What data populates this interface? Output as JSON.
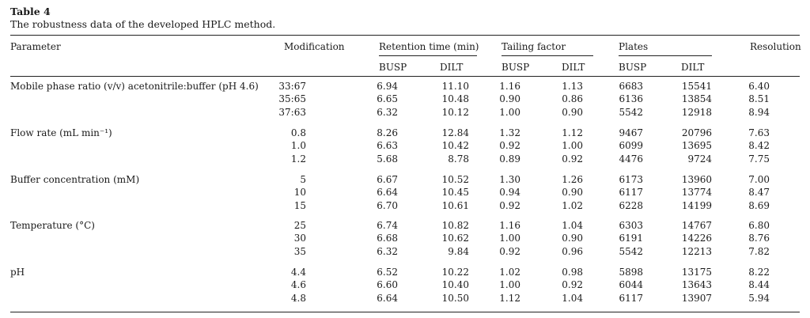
{
  "table": {
    "label": "Table 4",
    "caption": "The robustness data of the developed HPLC method.",
    "headers": {
      "parameter": "Parameter",
      "modification": "Modification",
      "retention": "Retention time (min)",
      "tailing": "Tailing factor",
      "plates": "Plates",
      "resolution": "Resolution",
      "busp": "BUSP",
      "dilt": "DILT"
    },
    "groups": [
      {
        "parameter": "Mobile phase ratio (v/v) acetonitrile:buffer (pH 4.6)",
        "rows": [
          {
            "mod": "33:67",
            "rt_busp": "6.94",
            "rt_dilt": "11.10",
            "tf_busp": "1.16",
            "tf_dilt": "1.13",
            "pl_busp": "6683",
            "pl_dilt": "15541",
            "res": "6.40"
          },
          {
            "mod": "35:65",
            "rt_busp": "6.65",
            "rt_dilt": "10.48",
            "tf_busp": "0.90",
            "tf_dilt": "0.86",
            "pl_busp": "6136",
            "pl_dilt": "13854",
            "res": "8.51"
          },
          {
            "mod": "37:63",
            "rt_busp": "6.32",
            "rt_dilt": "10.12",
            "tf_busp": "1.00",
            "tf_dilt": "0.90",
            "pl_busp": "5542",
            "pl_dilt": "12918",
            "res": "8.94"
          }
        ]
      },
      {
        "parameter": "Flow rate (mL min⁻¹)",
        "rows": [
          {
            "mod": "0.8",
            "rt_busp": "8.26",
            "rt_dilt": "12.84",
            "tf_busp": "1.32",
            "tf_dilt": "1.12",
            "pl_busp": "9467",
            "pl_dilt": "20796",
            "res": "7.63"
          },
          {
            "mod": "1.0",
            "rt_busp": "6.63",
            "rt_dilt": "10.42",
            "tf_busp": "0.92",
            "tf_dilt": "1.00",
            "pl_busp": "6099",
            "pl_dilt": "13695",
            "res": "8.42"
          },
          {
            "mod": "1.2",
            "rt_busp": "5.68",
            "rt_dilt": "8.78",
            "tf_busp": "0.89",
            "tf_dilt": "0.92",
            "pl_busp": "4476",
            "pl_dilt": "9724",
            "res": "7.75"
          }
        ]
      },
      {
        "parameter": "Buffer concentration (mM)",
        "rows": [
          {
            "mod": "5",
            "rt_busp": "6.67",
            "rt_dilt": "10.52",
            "tf_busp": "1.30",
            "tf_dilt": "1.26",
            "pl_busp": "6173",
            "pl_dilt": "13960",
            "res": "7.00"
          },
          {
            "mod": "10",
            "rt_busp": "6.64",
            "rt_dilt": "10.45",
            "tf_busp": "0.94",
            "tf_dilt": "0.90",
            "pl_busp": "6117",
            "pl_dilt": "13774",
            "res": "8.47"
          },
          {
            "mod": "15",
            "rt_busp": "6.70",
            "rt_dilt": "10.61",
            "tf_busp": "0.92",
            "tf_dilt": "1.02",
            "pl_busp": "6228",
            "pl_dilt": "14199",
            "res": "8.69"
          }
        ]
      },
      {
        "parameter": "Temperature (°C)",
        "rows": [
          {
            "mod": "25",
            "rt_busp": "6.74",
            "rt_dilt": "10.82",
            "tf_busp": "1.16",
            "tf_dilt": "1.04",
            "pl_busp": "6303",
            "pl_dilt": "14767",
            "res": "6.80"
          },
          {
            "mod": "30",
            "rt_busp": "6.68",
            "rt_dilt": "10.62",
            "tf_busp": "1.00",
            "tf_dilt": "0.90",
            "pl_busp": "6191",
            "pl_dilt": "14226",
            "res": "8.76"
          },
          {
            "mod": "35",
            "rt_busp": "6.32",
            "rt_dilt": "9.84",
            "tf_busp": "0.92",
            "tf_dilt": "0.96",
            "pl_busp": "5542",
            "pl_dilt": "12213",
            "res": "7.82"
          }
        ]
      },
      {
        "parameter": "pH",
        "rows": [
          {
            "mod": "4.4",
            "rt_busp": "6.52",
            "rt_dilt": "10.22",
            "tf_busp": "1.02",
            "tf_dilt": "0.98",
            "pl_busp": "5898",
            "pl_dilt": "13175",
            "res": "8.22"
          },
          {
            "mod": "4.6",
            "rt_busp": "6.60",
            "rt_dilt": "10.40",
            "tf_busp": "1.00",
            "tf_dilt": "0.92",
            "pl_busp": "6044",
            "pl_dilt": "13643",
            "res": "8.44"
          },
          {
            "mod": "4.8",
            "rt_busp": "6.64",
            "rt_dilt": "10.50",
            "tf_busp": "1.12",
            "tf_dilt": "1.04",
            "pl_busp": "6117",
            "pl_dilt": "13907",
            "res": "5.94"
          }
        ]
      }
    ]
  }
}
